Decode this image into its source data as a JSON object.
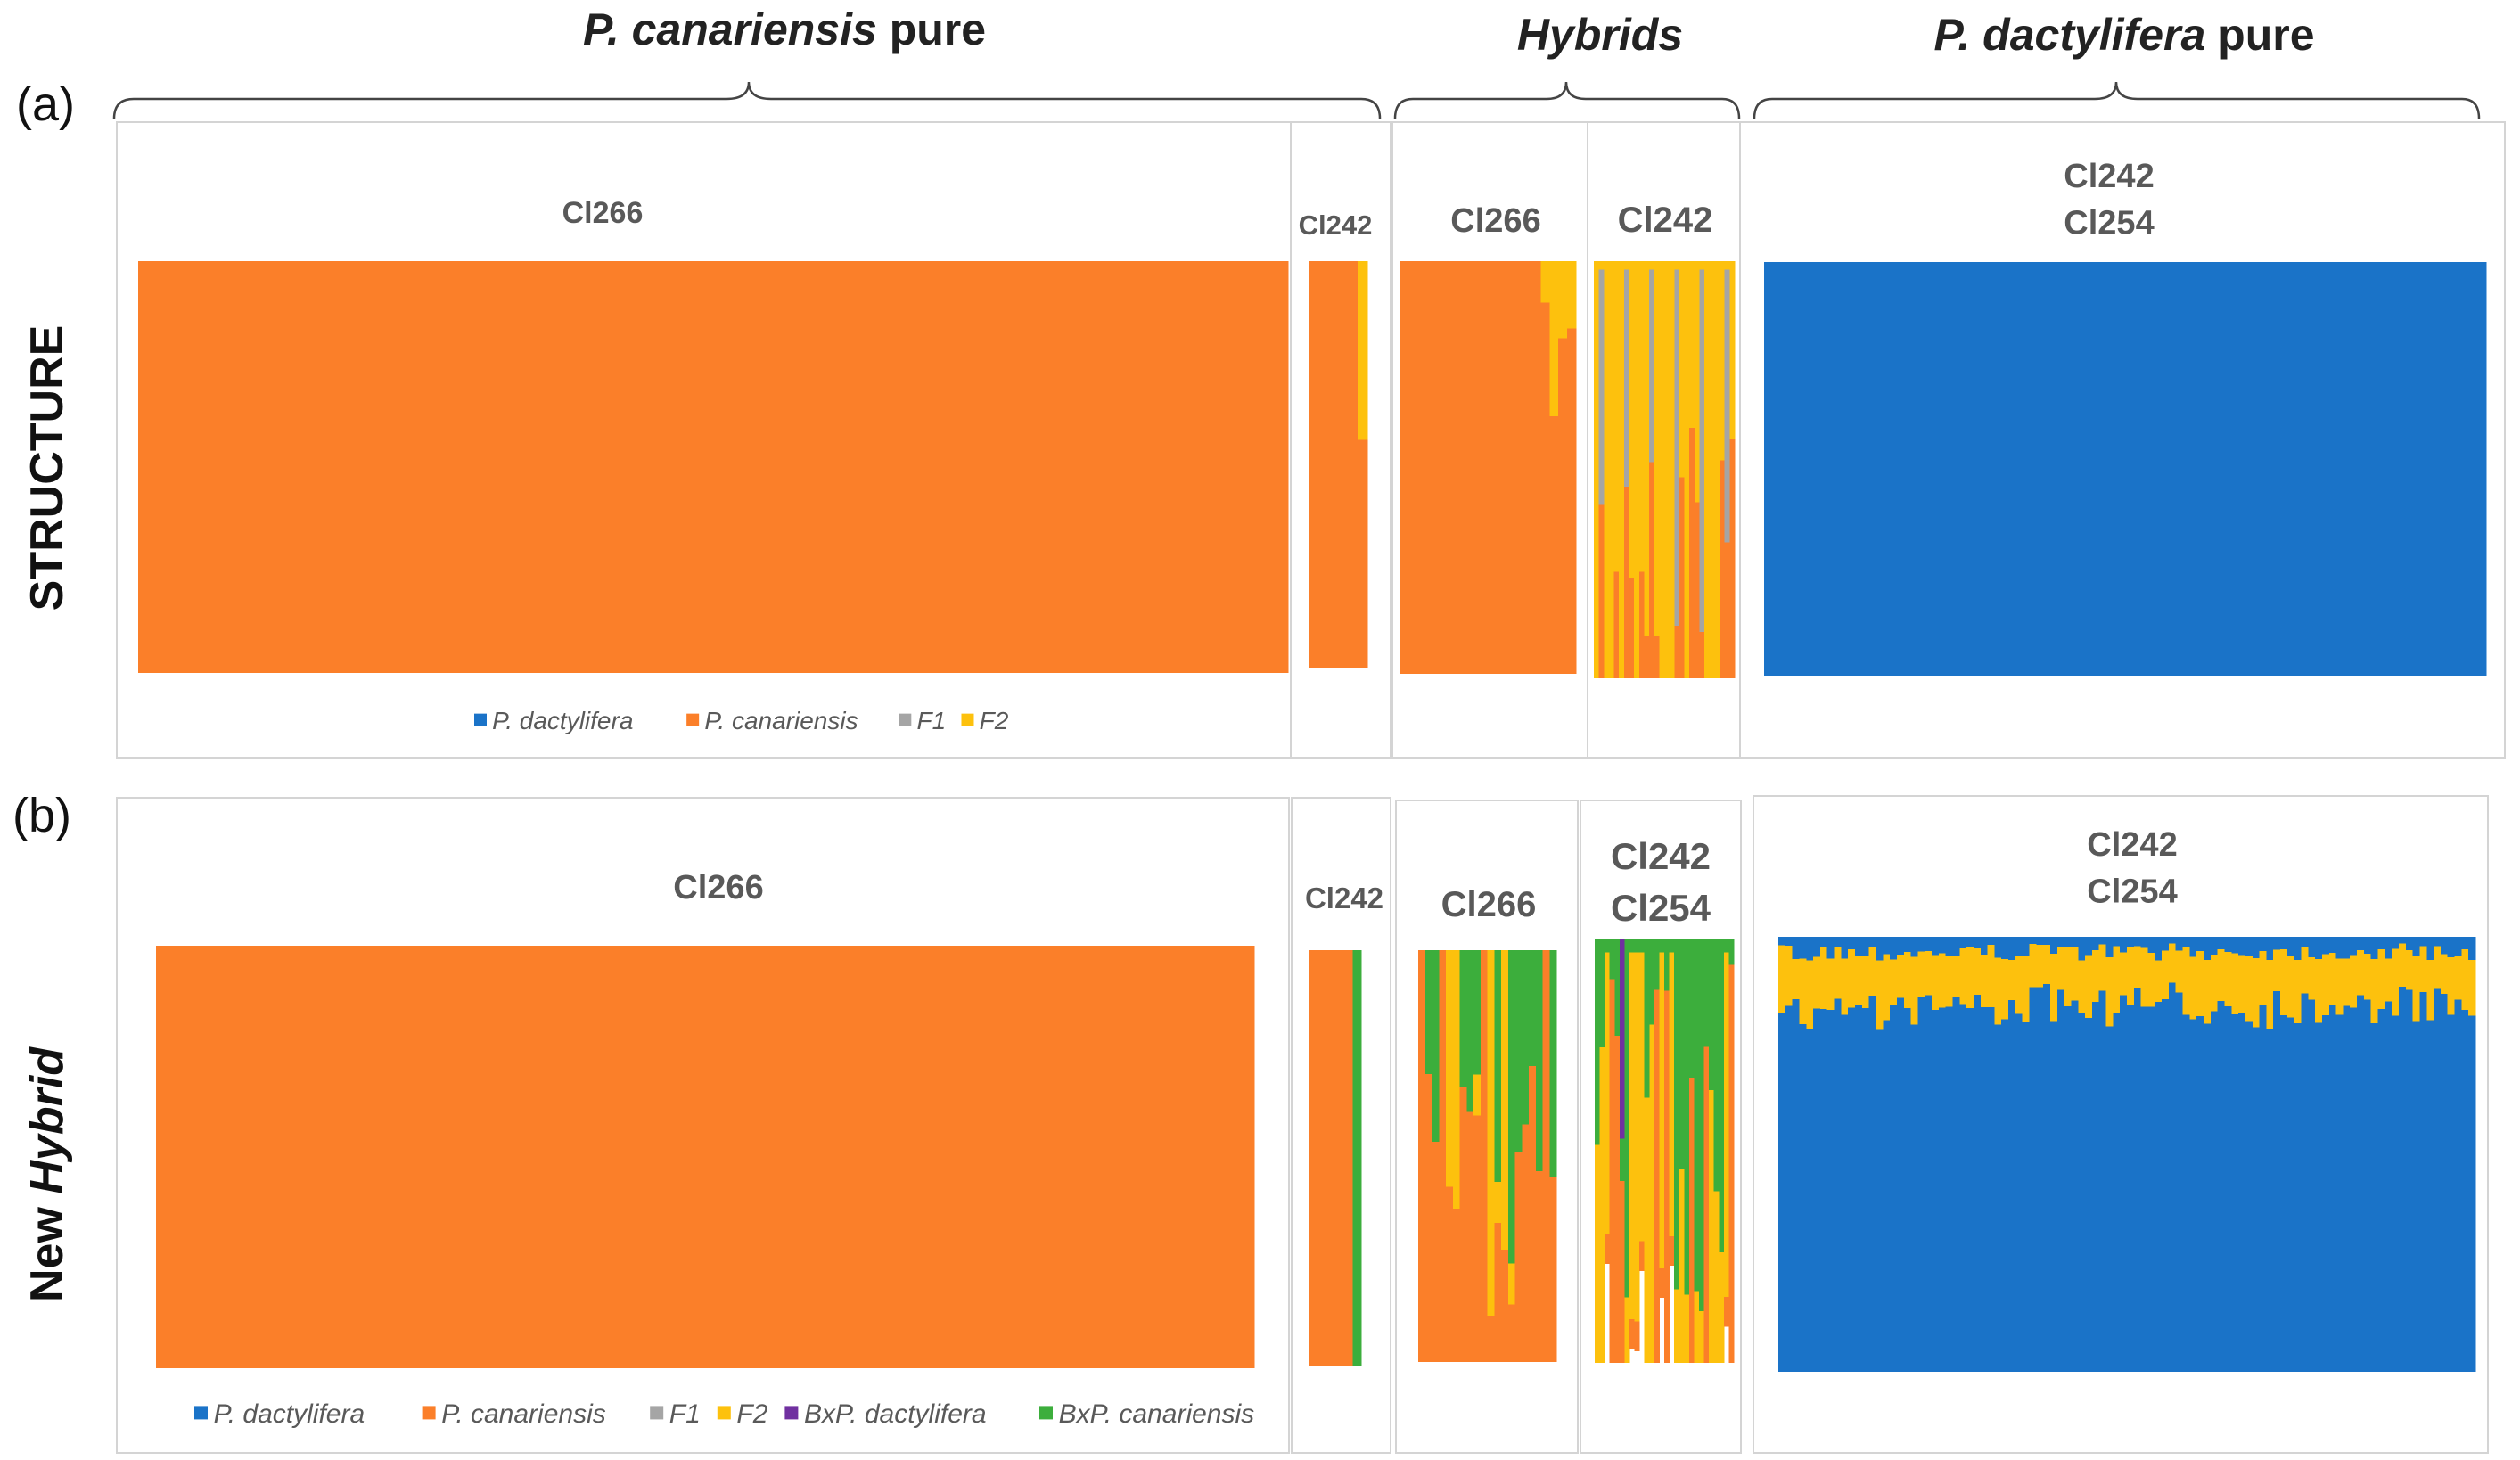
{
  "groups": {
    "canariensis": {
      "italic": "P. canariensis",
      "rest": " pure"
    },
    "hybrids": {
      "italic": "Hybrids",
      "rest": ""
    },
    "dactylifera": {
      "italic": "P. dactylifera",
      "rest": " pure"
    }
  },
  "panel_a": {
    "letter": "(a)",
    "row_label": "STRUCTURE",
    "box_labels": [
      [
        "Cl266"
      ],
      [
        "Cl242"
      ],
      [
        "Cl266"
      ],
      [
        "Cl242"
      ],
      [
        "Cl242",
        "Cl254"
      ]
    ],
    "legend": [
      {
        "label": "P. dactylifera",
        "color": "#1a73c8"
      },
      {
        "label": "P. canariensis",
        "color": "#fb7f29"
      },
      {
        "label": "F1",
        "color": "#a5a5a5"
      },
      {
        "label": "F2",
        "color": "#fdc10d"
      }
    ]
  },
  "panel_b": {
    "letter": "(b)",
    "row_label_plain": "New ",
    "row_label_italic": "Hybrid",
    "box_labels": [
      [
        "Cl266"
      ],
      [
        "Cl242"
      ],
      [
        "Cl266"
      ],
      [
        "Cl242",
        "Cl254"
      ],
      [
        "Cl242",
        "Cl254"
      ]
    ],
    "legend": [
      {
        "label": "P. dactylifera",
        "color": "#1a73c8"
      },
      {
        "label": "P. canariensis",
        "color": "#fb7f29"
      },
      {
        "label": "F1",
        "color": "#a5a5a5"
      },
      {
        "label": "F2",
        "color": "#fdc10d"
      },
      {
        "label": "BxP. dactylifera",
        "color": "#7030a0"
      },
      {
        "label": "BxP. canariensis",
        "color": "#3cae3c"
      }
    ]
  },
  "chart_data": [
    {
      "type": "bar",
      "stacked": true,
      "panel": "a",
      "method": "STRUCTURE",
      "ylim": [
        0,
        1
      ],
      "series_names": [
        "P. dactylifera",
        "P. canariensis",
        "F1",
        "F2"
      ],
      "groups": [
        {
          "label": "Cl266",
          "group": "P. canariensis pure",
          "n": 120,
          "pattern": "canariensis"
        },
        {
          "label": "Cl242",
          "group": "P. canariensis pure",
          "n": 6,
          "pattern": "canariensis_small"
        },
        {
          "label": "Cl266",
          "group": "Hybrids",
          "n": 20,
          "pattern": "hyb_a_266"
        },
        {
          "label": "Cl242",
          "group": "Hybrids",
          "n": 28,
          "pattern": "hyb_a_242"
        },
        {
          "label": "Cl242 Cl254",
          "group": "P. dactylifera pure",
          "n": 80,
          "pattern": "dactylifera_a"
        }
      ]
    },
    {
      "type": "bar",
      "stacked": true,
      "panel": "b",
      "method": "New Hybrid",
      "ylim": [
        0,
        1
      ],
      "series_names": [
        "P. dactylifera",
        "P. canariensis",
        "F1",
        "F2",
        "BxP. dactylifera",
        "BxP. canariensis"
      ],
      "groups": [
        {
          "label": "Cl266",
          "group": "P. canariensis pure",
          "n": 120,
          "pattern": "canariensis"
        },
        {
          "label": "Cl242",
          "group": "P. canariensis pure",
          "n": 6,
          "pattern": "canariensis_small_b"
        },
        {
          "label": "Cl266",
          "group": "Hybrids",
          "n": 20,
          "pattern": "hyb_b_266"
        },
        {
          "label": "Cl242 Cl254",
          "group": "Hybrids",
          "n": 28,
          "pattern": "hyb_b_242"
        },
        {
          "label": "Cl242 Cl254",
          "group": "P. dactylifera pure",
          "n": 100,
          "pattern": "dactylifera_b"
        }
      ]
    }
  ]
}
